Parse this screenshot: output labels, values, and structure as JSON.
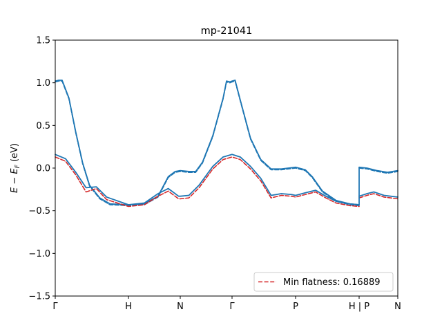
{
  "chart_data": {
    "type": "line",
    "title": "mp-21041",
    "ylabel": "E − E_F (eV)",
    "xlabel": "",
    "ylim": [
      -1.5,
      1.5
    ],
    "xlim": [
      0,
      1
    ],
    "y_ticks": [
      -1.5,
      -1.0,
      -0.5,
      0.0,
      0.5,
      1.0,
      1.5
    ],
    "y_tick_labels": [
      "−1.5",
      "−1.0",
      "−0.5",
      "0.0",
      "0.5",
      "1.0",
      "1.5"
    ],
    "x_ticks": [
      {
        "x": 0.0,
        "label": "Γ"
      },
      {
        "x": 0.2137,
        "label": "H"
      },
      {
        "x": 0.3649,
        "label": "N"
      },
      {
        "x": 0.5161,
        "label": "Γ"
      },
      {
        "x": 0.7016,
        "label": "P"
      },
      {
        "x": 0.8871,
        "label": "H | P"
      },
      {
        "x": 1.0,
        "label": "N"
      }
    ],
    "grid": false,
    "legend": {
      "placement": "lower-right",
      "entries": [
        "Min flatness: 0.16889"
      ]
    },
    "colors": {
      "bands": "#1f77b4",
      "flat_band": "#d62728"
    },
    "series": [
      {
        "style": "solid",
        "color": "#1f77b4",
        "points": [
          [
            0,
            1.02
          ],
          [
            0.01,
            1.03
          ],
          [
            0.02,
            1.03
          ],
          [
            0.04,
            0.82
          ],
          [
            0.06,
            0.42
          ],
          [
            0.08,
            0.06
          ],
          [
            0.1,
            -0.2
          ],
          [
            0.13,
            -0.35
          ],
          [
            0.16,
            -0.42
          ],
          [
            0.2137,
            -0.43
          ],
          [
            0.26,
            -0.42
          ],
          [
            0.3,
            -0.33
          ],
          [
            0.33,
            -0.1
          ],
          [
            0.35,
            -0.04
          ],
          [
            0.3649,
            -0.03
          ],
          [
            0.39,
            -0.04
          ],
          [
            0.41,
            -0.04
          ],
          [
            0.43,
            0.07
          ],
          [
            0.46,
            0.38
          ],
          [
            0.49,
            0.82
          ],
          [
            0.5,
            1.02
          ],
          [
            0.51,
            1.01
          ],
          [
            0.5161,
            1.02
          ],
          [
            0.525,
            1.03
          ],
          [
            0.54,
            0.8
          ],
          [
            0.57,
            0.35
          ],
          [
            0.6,
            0.1
          ],
          [
            0.63,
            -0.01
          ],
          [
            0.66,
            -0.01
          ],
          [
            0.7016,
            0.01
          ],
          [
            0.73,
            -0.02
          ],
          [
            0.75,
            -0.1
          ],
          [
            0.78,
            -0.27
          ],
          [
            0.82,
            -0.38
          ],
          [
            0.86,
            -0.42
          ],
          [
            0.8871,
            -0.43
          ]
        ]
      },
      {
        "style": "solid",
        "color": "#1f77b4",
        "points": [
          [
            0,
            0.16
          ],
          [
            0.03,
            0.11
          ],
          [
            0.06,
            -0.05
          ],
          [
            0.09,
            -0.23
          ],
          [
            0.12,
            -0.22
          ],
          [
            0.15,
            -0.34
          ],
          [
            0.2137,
            -0.43
          ],
          [
            0.26,
            -0.41
          ],
          [
            0.3,
            -0.3
          ],
          [
            0.33,
            -0.24
          ],
          [
            0.36,
            -0.33
          ],
          [
            0.3649,
            -0.33
          ],
          [
            0.39,
            -0.32
          ],
          [
            0.42,
            -0.2
          ],
          [
            0.46,
            0.02
          ],
          [
            0.49,
            0.13
          ],
          [
            0.5161,
            0.16
          ],
          [
            0.54,
            0.13
          ],
          [
            0.57,
            0.02
          ],
          [
            0.6,
            -0.12
          ],
          [
            0.63,
            -0.32
          ],
          [
            0.66,
            -0.3
          ],
          [
            0.69,
            -0.31
          ],
          [
            0.7016,
            -0.32
          ],
          [
            0.73,
            -0.29
          ],
          [
            0.76,
            -0.26
          ],
          [
            0.79,
            -0.33
          ],
          [
            0.82,
            -0.39
          ],
          [
            0.86,
            -0.42
          ],
          [
            0.8871,
            -0.43
          ]
        ]
      },
      {
        "style": "solid",
        "color": "#1f77b4",
        "points": [
          [
            0.8871,
            0.01
          ],
          [
            0.91,
            0.0
          ],
          [
            0.94,
            -0.03
          ],
          [
            0.97,
            -0.05
          ],
          [
            1.0,
            -0.03
          ]
        ]
      },
      {
        "style": "solid",
        "color": "#1f77b4",
        "points": [
          [
            0.8871,
            -0.33
          ],
          [
            0.91,
            -0.3
          ],
          [
            0.93,
            -0.28
          ],
          [
            0.96,
            -0.32
          ],
          [
            1.0,
            -0.34
          ]
        ]
      },
      {
        "style": "dashed",
        "color": "#1f77b4",
        "points": [
          [
            0,
            1.01
          ],
          [
            0.01,
            1.02
          ],
          [
            0.02,
            1.02
          ],
          [
            0.04,
            0.81
          ],
          [
            0.06,
            0.41
          ],
          [
            0.08,
            0.05
          ],
          [
            0.1,
            -0.21
          ],
          [
            0.13,
            -0.36
          ],
          [
            0.16,
            -0.43
          ],
          [
            0.2137,
            -0.44
          ],
          [
            0.26,
            -0.43
          ],
          [
            0.3,
            -0.34
          ],
          [
            0.33,
            -0.11
          ],
          [
            0.35,
            -0.05
          ],
          [
            0.3649,
            -0.04
          ],
          [
            0.39,
            -0.05
          ],
          [
            0.41,
            -0.05
          ],
          [
            0.43,
            0.06
          ],
          [
            0.46,
            0.37
          ],
          [
            0.49,
            0.81
          ],
          [
            0.5,
            1.01
          ],
          [
            0.51,
            1.0
          ],
          [
            0.5161,
            1.01
          ],
          [
            0.525,
            1.02
          ],
          [
            0.54,
            0.79
          ],
          [
            0.57,
            0.34
          ],
          [
            0.6,
            0.09
          ],
          [
            0.63,
            -0.02
          ],
          [
            0.66,
            -0.02
          ],
          [
            0.7016,
            0.0
          ],
          [
            0.73,
            -0.03
          ],
          [
            0.75,
            -0.11
          ],
          [
            0.78,
            -0.28
          ],
          [
            0.82,
            -0.39
          ],
          [
            0.86,
            -0.43
          ],
          [
            0.8871,
            -0.44
          ]
        ]
      },
      {
        "style": "dashed",
        "color": "#1f77b4",
        "points": [
          [
            0.8871,
            0.0
          ],
          [
            0.91,
            -0.01
          ],
          [
            0.94,
            -0.04
          ],
          [
            0.97,
            -0.06
          ],
          [
            1.0,
            -0.04
          ]
        ]
      },
      {
        "name": "Min flatness: 0.16889",
        "style": "dashed",
        "color": "#d62728",
        "points": [
          [
            0,
            0.13
          ],
          [
            0.03,
            0.08
          ],
          [
            0.06,
            -0.08
          ],
          [
            0.09,
            -0.28
          ],
          [
            0.12,
            -0.24
          ],
          [
            0.15,
            -0.37
          ],
          [
            0.2137,
            -0.45
          ],
          [
            0.26,
            -0.43
          ],
          [
            0.3,
            -0.33
          ],
          [
            0.33,
            -0.27
          ],
          [
            0.36,
            -0.36
          ],
          [
            0.3649,
            -0.36
          ],
          [
            0.39,
            -0.35
          ],
          [
            0.42,
            -0.23
          ],
          [
            0.46,
            -0.01
          ],
          [
            0.49,
            0.1
          ],
          [
            0.5161,
            0.13
          ],
          [
            0.54,
            0.1
          ],
          [
            0.57,
            -0.01
          ],
          [
            0.6,
            -0.15
          ],
          [
            0.63,
            -0.35
          ],
          [
            0.66,
            -0.32
          ],
          [
            0.69,
            -0.33
          ],
          [
            0.7016,
            -0.34
          ],
          [
            0.73,
            -0.31
          ],
          [
            0.76,
            -0.28
          ],
          [
            0.79,
            -0.35
          ],
          [
            0.82,
            -0.41
          ],
          [
            0.86,
            -0.44
          ],
          [
            0.8871,
            -0.45
          ]
        ]
      },
      {
        "style": "dashed",
        "color": "#d62728",
        "points": [
          [
            0.8871,
            -0.35
          ],
          [
            0.91,
            -0.32
          ],
          [
            0.93,
            -0.3
          ],
          [
            0.96,
            -0.34
          ],
          [
            1.0,
            -0.36
          ]
        ]
      }
    ]
  }
}
